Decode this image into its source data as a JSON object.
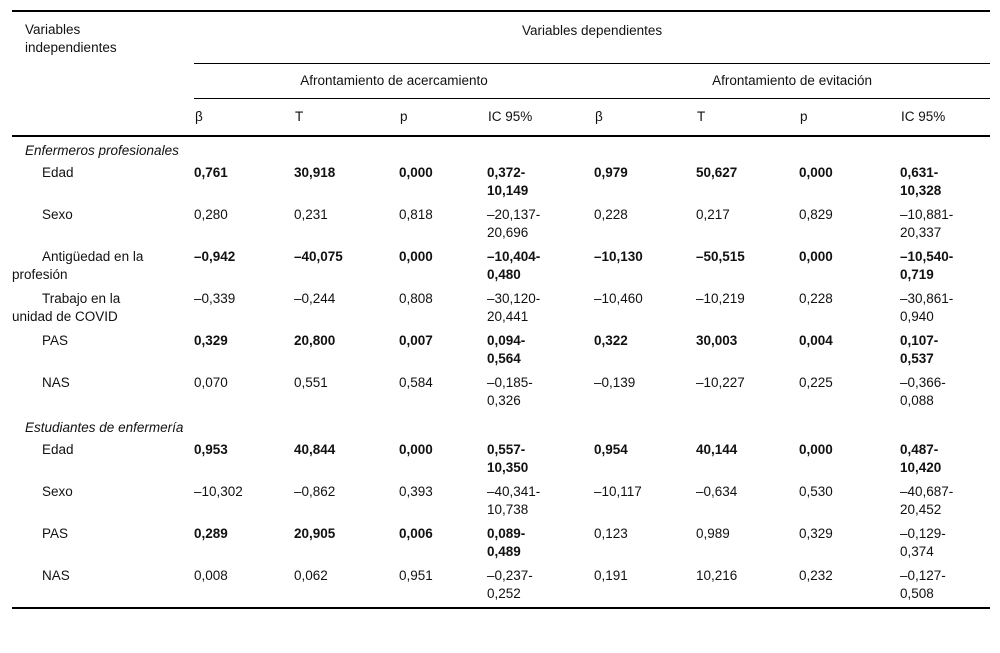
{
  "table": {
    "headers": {
      "independent": "Variables\nindependientes",
      "dependent": "Variables dependientes",
      "group1": "Afrontamiento de acercamiento",
      "group2": "Afrontamiento de evitación",
      "stats": [
        "β",
        "T",
        "p",
        "IC 95%",
        "β",
        "T",
        "p",
        "IC 95%"
      ]
    },
    "sections": [
      {
        "title": "Enfermeros profesionales",
        "rows": [
          {
            "label": "Edad",
            "bold_left": true,
            "bold_right": true,
            "values": [
              "0,761",
              "30,918",
              "0,000",
              "0,372-\n10,149",
              "0,979",
              "50,627",
              "0,000",
              "0,631-\n10,328"
            ]
          },
          {
            "label": "Sexo",
            "bold_left": false,
            "bold_right": false,
            "values": [
              "0,280",
              "0,231",
              "0,818",
              "–20,137-\n20,696",
              "0,228",
              "0,217",
              "0,829",
              "–10,881-\n20,337"
            ]
          },
          {
            "label": "Antigüedad en la\nprofesión",
            "bold_left": true,
            "bold_right": true,
            "values": [
              "–0,942",
              "–40,075",
              "0,000",
              "–10,404-\n0,480",
              "–10,130",
              "–50,515",
              "0,000",
              "–10,540-\n0,719"
            ]
          },
          {
            "label": "Trabajo en la\nunidad de COVID",
            "bold_left": false,
            "bold_right": false,
            "values": [
              "–0,339",
              "–0,244",
              "0,808",
              "–30,120-\n20,441",
              "–10,460",
              "–10,219",
              "0,228",
              "–30,861-\n0,940"
            ]
          },
          {
            "label": "PAS",
            "bold_left": true,
            "bold_right": true,
            "values": [
              "0,329",
              "20,800",
              "0,007",
              "0,094-\n0,564",
              "0,322",
              "30,003",
              "0,004",
              "0,107-\n0,537"
            ]
          },
          {
            "label": "NAS",
            "bold_left": false,
            "bold_right": false,
            "values": [
              "0,070",
              "0,551",
              "0,584",
              "–0,185-\n0,326",
              "–0,139",
              "–10,227",
              "0,225",
              "–0,366-\n0,088"
            ]
          }
        ]
      },
      {
        "title": "Estudiantes de enfermería",
        "rows": [
          {
            "label": "Edad",
            "bold_left": true,
            "bold_right": true,
            "values": [
              "0,953",
              "40,844",
              "0,000",
              "0,557-\n10,350",
              "0,954",
              "40,144",
              "0,000",
              "0,487-\n10,420"
            ]
          },
          {
            "label": "Sexo",
            "bold_left": false,
            "bold_right": false,
            "values": [
              "–10,302",
              "–0,862",
              "0,393",
              "–40,341-\n10,738",
              "–10,117",
              "–0,634",
              "0,530",
              "–40,687-\n20,452"
            ]
          },
          {
            "label": "PAS",
            "bold_left": true,
            "bold_right": false,
            "values": [
              "0,289",
              "20,905",
              "0,006",
              "0,089-\n0,489",
              "0,123",
              "0,989",
              "0,329",
              "–0,129-\n0,374"
            ]
          },
          {
            "label": "NAS",
            "bold_left": false,
            "bold_right": false,
            "values": [
              "0,008",
              "0,062",
              "0,951",
              "–0,237-\n0,252",
              "0,191",
              "10,216",
              "0,232",
              "–0,127-\n0,508"
            ]
          }
        ]
      }
    ]
  }
}
